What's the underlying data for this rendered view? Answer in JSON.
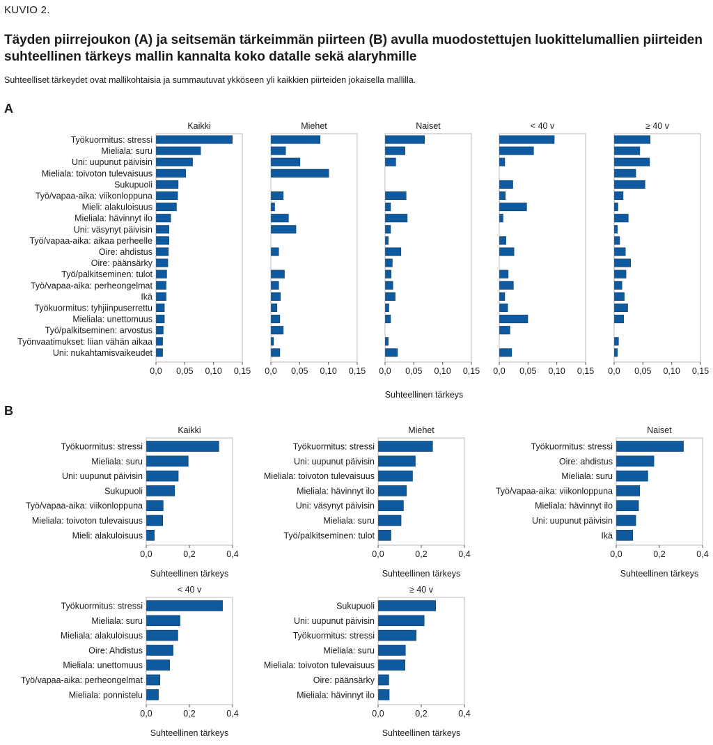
{
  "figure_label": "KUVIO 2.",
  "title": "Täyden piirrejoukon (A) ja seitsemän tärkeimmän piirteen (B) avulla muodostettujen luokittelumallien piirteiden suhteellinen tärkeys mallin kannalta koko datalle sekä alaryhmille",
  "subtitle": "Suhteelliset tärkeydet ovat mallikohtaisia ja summautuvat ykköseen yli kaikkien piirteiden jokaisella mallilla.",
  "colors": {
    "bar": "#0f5a9e",
    "frame": "#b8b8b8"
  },
  "section_a": {
    "label": "A",
    "xlabel": "Suhteellinen tärkeys",
    "xlim": [
      0,
      0.15
    ],
    "xticks": [
      "0,0",
      "0,05",
      "0,10",
      "0,15"
    ],
    "tick_values": [
      0,
      0.05,
      0.1,
      0.15
    ],
    "features": [
      "Työkuormitus: stressi",
      "Mieliala: suru",
      "Uni: uupunut päivisin",
      "Mieliala: toivoton tulevaisuus",
      "Sukupuoli",
      "Työ/vapaa-aika: viikonloppuna",
      "Mieli: alakuloisuus",
      "Mieliala: hävinnyt ilo",
      "Uni: väsynyt päivisin",
      "Työ/vapaa-aika: aikaa perheelle",
      "Oire: ahdistus",
      "Oire: päänsärky",
      "Työ/palkitseminen: tulot",
      "Työ/vapaa-aika: perheongelmat",
      "Ikä",
      "Työkuormitus: tyhjiinpuserrettu",
      "Mieliala: unettomuus",
      "Työ/palkitseminen: arvostus",
      "Työnvaatimukset: liian vähän aikaa",
      "Uni: nukahtamisvaikeudet"
    ]
  },
  "section_b": {
    "label": "B",
    "xlabel": "Suhteellinen tärkeys",
    "xlim": [
      0,
      0.4
    ],
    "xticks": [
      "0,0",
      "0,2",
      "0,4"
    ],
    "tick_values": [
      0,
      0.2,
      0.4
    ]
  },
  "chart_data": [
    {
      "type": "bar",
      "orientation": "horizontal",
      "panel": "A",
      "title": "Kaikki",
      "xlim": [
        0,
        0.15
      ],
      "values": [
        0.132,
        0.077,
        0.063,
        0.051,
        0.038,
        0.037,
        0.035,
        0.025,
        0.022,
        0.022,
        0.021,
        0.02,
        0.018,
        0.017,
        0.017,
        0.014,
        0.014,
        0.012,
        0.011,
        0.011
      ]
    },
    {
      "type": "bar",
      "orientation": "horizontal",
      "panel": "A",
      "title": "Miehet",
      "xlim": [
        0,
        0.15
      ],
      "values": [
        0.085,
        0.025,
        0.05,
        0.1,
        0,
        0.021,
        0.006,
        0.03,
        0.043,
        0,
        0.013,
        0,
        0.023,
        0.013,
        0.016,
        0.01,
        0.015,
        0.021,
        0.004,
        0.015
      ]
    },
    {
      "type": "bar",
      "orientation": "horizontal",
      "panel": "A",
      "title": "Naiset",
      "xlim": [
        0,
        0.15
      ],
      "values": [
        0.068,
        0.034,
        0.018,
        0,
        0,
        0.036,
        0.009,
        0.038,
        0.009,
        0.005,
        0.027,
        0.012,
        0.01,
        0.013,
        0.017,
        0.006,
        0.009,
        0,
        0.005,
        0.021
      ]
    },
    {
      "type": "bar",
      "orientation": "horizontal",
      "panel": "A",
      "title": "< 40 v",
      "xlim": [
        0,
        0.15
      ],
      "values": [
        0.095,
        0.059,
        0.009,
        0,
        0.023,
        0.01,
        0.047,
        0.006,
        0,
        0.011,
        0.025,
        0,
        0.015,
        0.024,
        0.009,
        0.014,
        0.049,
        0.018,
        0,
        0.021
      ]
    },
    {
      "type": "bar",
      "orientation": "horizontal",
      "panel": "A",
      "title": "≥ 40 v",
      "xlim": [
        0,
        0.15
      ],
      "values": [
        0.062,
        0.044,
        0.061,
        0.037,
        0.053,
        0.015,
        0.006,
        0.024,
        0.005,
        0.009,
        0.019,
        0.028,
        0.02,
        0.013,
        0.017,
        0.023,
        0.016,
        0,
        0.007,
        0.005
      ]
    },
    {
      "type": "bar",
      "orientation": "horizontal",
      "panel": "B",
      "title": "Kaikki",
      "xlim": [
        0,
        0.4
      ],
      "categories": [
        "Työkuormitus: stressi",
        "Mieliala: suru",
        "Uni: uupunut päivisin",
        "Sukupuoli",
        "Työ/vapaa-aika: viikonloppuna",
        "Mieliala: toivoton tulevaisuus",
        "Mieli: alakuloisuus"
      ],
      "values": [
        0.335,
        0.193,
        0.147,
        0.13,
        0.077,
        0.075,
        0.036
      ]
    },
    {
      "type": "bar",
      "orientation": "horizontal",
      "panel": "B",
      "title": "Miehet",
      "xlim": [
        0,
        0.4
      ],
      "categories": [
        "Työkuormitus: stressi",
        "Uni: uupunut päivisin",
        "Mieliala: toivoton tulevaisuus",
        "Mieliala: hävinnyt ilo",
        "Uni: väsynyt päivisin",
        "Mieliala: suru",
        "Työ/palkitseminen: tulot"
      ],
      "values": [
        0.251,
        0.171,
        0.158,
        0.13,
        0.116,
        0.105,
        0.058
      ]
    },
    {
      "type": "bar",
      "orientation": "horizontal",
      "panel": "B",
      "title": "Naiset",
      "xlim": [
        0,
        0.4
      ],
      "categories": [
        "Työkuormitus: stressi",
        "Oire: ahdistus",
        "Mieliala: suru",
        "Työ/vapaa-aika: viikonloppuna",
        "Mieliala: hävinnyt ilo",
        "Uni: uupunut päivisin",
        "Ikä"
      ],
      "values": [
        0.31,
        0.173,
        0.145,
        0.107,
        0.102,
        0.089,
        0.075
      ]
    },
    {
      "type": "bar",
      "orientation": "horizontal",
      "panel": "B",
      "title": "< 40 v",
      "xlim": [
        0,
        0.4
      ],
      "categories": [
        "Työkuormitus: stressi",
        "Mieliala: suru",
        "Mieliala: alakuloisuus",
        "Oire: Ahdistus",
        "Mieliala: unettomuus",
        "Työ/vapaa-aika: perheongelmat",
        "Mieliala: ponnistelu"
      ],
      "values": [
        0.352,
        0.155,
        0.145,
        0.123,
        0.107,
        0.062,
        0.055
      ]
    },
    {
      "type": "bar",
      "orientation": "horizontal",
      "panel": "B",
      "title": "≥ 40 v",
      "xlim": [
        0,
        0.4
      ],
      "categories": [
        "Sukupuoli",
        "Uni: uupunut päivisin",
        "Työkuormitus: stressi",
        "Mieliala: suru",
        "Mieliala: toivoton tulevaisuus",
        "Oire: päänsärky",
        "Mieliala: hävinnyt ilo"
      ],
      "values": [
        0.265,
        0.212,
        0.175,
        0.125,
        0.123,
        0.048,
        0.05
      ]
    }
  ]
}
